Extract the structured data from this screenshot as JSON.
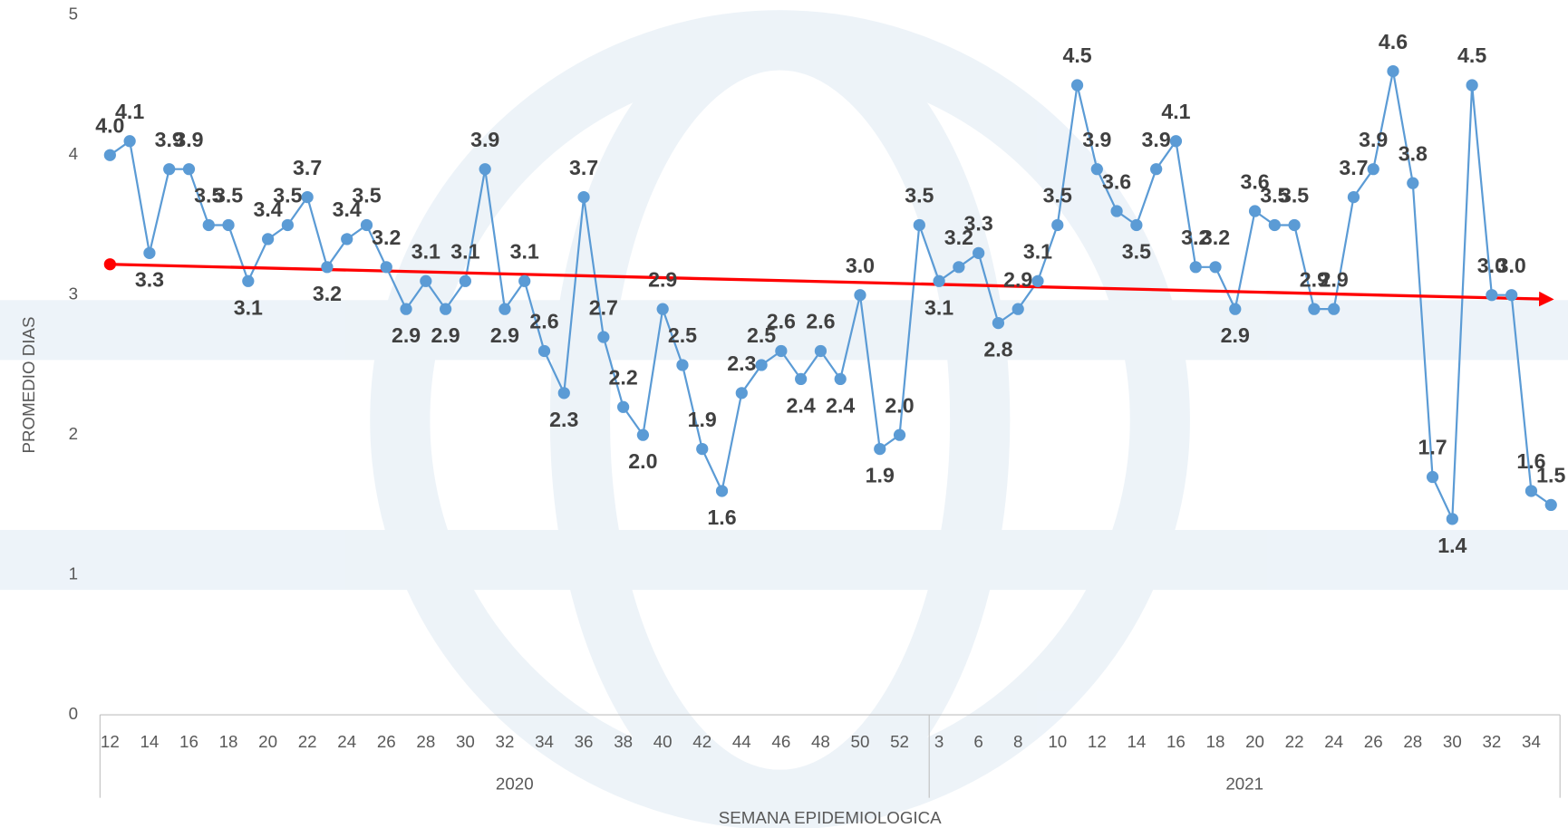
{
  "chart_data": {
    "type": "line",
    "y_label": "PROMEDIO DIAS",
    "x_label": "SEMANA EPIDEMIOLOGICA",
    "ylim": [
      0,
      5
    ],
    "yticks": [
      0,
      1,
      2,
      3,
      4,
      5
    ],
    "groups": [
      "2020",
      "2021"
    ],
    "categories": [
      "12",
      null,
      "14",
      null,
      "16",
      null,
      "18",
      null,
      "20",
      null,
      "22",
      null,
      "24",
      null,
      "26",
      null,
      "28",
      null,
      "30",
      null,
      "32",
      null,
      "34",
      null,
      "36",
      null,
      "38",
      null,
      "40",
      null,
      "42",
      null,
      "44",
      null,
      "46",
      null,
      "48",
      null,
      "50",
      null,
      "52",
      null,
      "3",
      null,
      "6",
      null,
      "8",
      null,
      "10",
      null,
      "12",
      null,
      "14",
      null,
      "16",
      null,
      "18",
      null,
      "20",
      null,
      "22",
      null,
      "24",
      null,
      "26",
      null,
      "28",
      null,
      "30",
      null,
      "32",
      null,
      "34",
      null
    ],
    "color": "#5b9bd5",
    "values": [
      4.0,
      4.1,
      3.3,
      3.9,
      3.9,
      3.5,
      3.5,
      3.1,
      3.4,
      3.5,
      3.7,
      3.2,
      3.4,
      3.5,
      3.2,
      2.9,
      3.1,
      2.9,
      3.1,
      3.9,
      2.9,
      3.1,
      2.6,
      2.3,
      3.7,
      2.7,
      2.2,
      2.0,
      2.9,
      2.5,
      1.9,
      1.6,
      2.3,
      2.5,
      2.6,
      2.4,
      2.6,
      2.4,
      3.0,
      1.9,
      2.0,
      3.5,
      3.1,
      3.2,
      3.3,
      2.8,
      2.9,
      3.1,
      3.5,
      4.5,
      3.9,
      3.6,
      3.5,
      3.9,
      4.1,
      3.2,
      3.2,
      2.9,
      3.6,
      3.5,
      3.5,
      2.9,
      2.9,
      3.7,
      3.9,
      4.6,
      3.8,
      1.7,
      1.4,
      4.5,
      3.0,
      3.0,
      1.6,
      1.5
    ],
    "value_labels": [
      "4.0",
      "4.1",
      "3.3",
      "3.9",
      "3.9",
      "3.5",
      "3.5",
      "3.1",
      "3.4",
      "3.5",
      "3.7",
      "3.2",
      "3.4",
      "3.5",
      "3.2",
      "2.9",
      "3.1",
      "2.9",
      "3.1",
      "3.9",
      "2.9",
      "3.1",
      "2.6",
      "2.3",
      "3.7",
      "2.7",
      "2.2",
      "2.0",
      "2.9",
      "2.5",
      "1.9",
      "1.6",
      "2.3",
      "2.5",
      "2.6",
      "2.4",
      "2.6",
      "2.4",
      "3.0",
      "1.9",
      "2.0",
      "3.5",
      "3.1",
      "3.2",
      "3.3",
      "2.8",
      "2.9",
      "3.1",
      "3.5",
      "4.5",
      "3.9",
      "3.6",
      "3.5",
      "3.9",
      "4.1",
      "3.2",
      "3.2",
      "2.9",
      "3.6",
      "3.5",
      "3.5",
      "2.9",
      "2.9",
      "3.7",
      "3.9",
      "4.6",
      "3.8",
      "1.7",
      "1.4",
      "4.5",
      "3.0",
      "3.0",
      "1.6",
      "1.5"
    ],
    "trendline": {
      "color": "#ff0000",
      "start": 3.22,
      "end": 2.97
    }
  }
}
